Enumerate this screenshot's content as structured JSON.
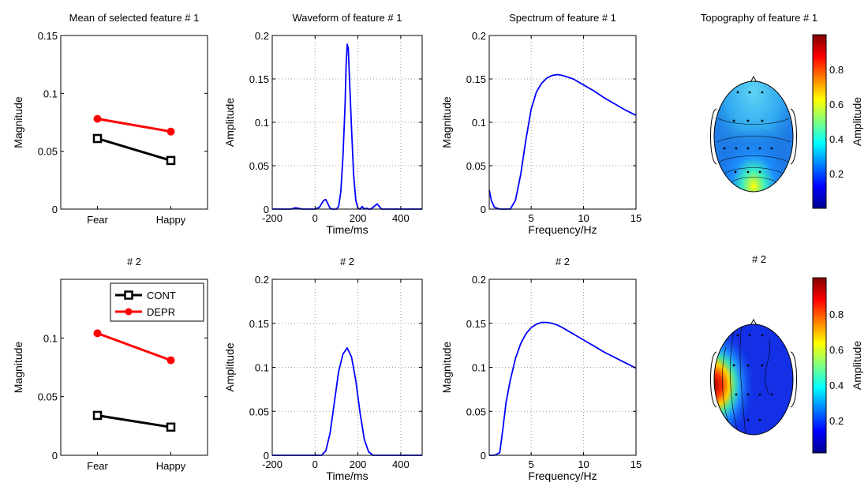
{
  "chart_data": [
    {
      "id": "mean1",
      "type": "line",
      "title": "Mean of selected feature # 1",
      "ylabel": "Magnitude",
      "categories": [
        "Fear",
        "Happy"
      ],
      "series": [
        {
          "name": "CONT",
          "color": "#000000",
          "marker": "square",
          "values": [
            0.061,
            0.042
          ]
        },
        {
          "name": "DEPR",
          "color": "#ff0000",
          "marker": "circle",
          "values": [
            0.078,
            0.067
          ]
        }
      ],
      "ylim": [
        0,
        0.15
      ],
      "yticks": [
        "0",
        "0.05",
        "0.1",
        "0.15"
      ],
      "grid": false,
      "legend": "none"
    },
    {
      "id": "wave1",
      "type": "line",
      "title": "Waveform of feature # 1",
      "xlabel": "Time/ms",
      "ylabel": "Amplitude",
      "series": [
        {
          "color": "#0000ff",
          "x": [
            -200,
            -110,
            -100,
            -90,
            -80,
            -60,
            -40,
            0,
            20,
            30,
            40,
            50,
            60,
            70,
            80,
            90,
            100,
            110,
            120,
            130,
            140,
            145,
            150,
            155,
            160,
            170,
            180,
            190,
            200,
            210,
            220,
            230,
            240,
            250,
            260,
            280,
            290,
            300,
            310,
            320,
            340,
            400,
            500
          ],
          "y": [
            0,
            0,
            0.001,
            0.0015,
            0.001,
            0,
            0,
            0,
            0.002,
            0.006,
            0.01,
            0.011,
            0.006,
            0.001,
            0,
            0,
            0,
            0.003,
            0.02,
            0.06,
            0.12,
            0.165,
            0.19,
            0.185,
            0.155,
            0.095,
            0.04,
            0.01,
            0.001,
            0,
            0.003,
            0,
            0.001,
            0,
            0,
            0.004,
            0.006,
            0.003,
            0,
            0,
            0,
            0,
            0
          ]
        }
      ],
      "xlim": [
        -200,
        500
      ],
      "ylim": [
        0,
        0.2
      ],
      "xticks": [
        "-200",
        "0",
        "200",
        "400"
      ],
      "yticks": [
        "0",
        "0.05",
        "0.1",
        "0.15",
        "0.2"
      ],
      "grid": true
    },
    {
      "id": "spec1",
      "type": "line",
      "title": "Spectrum of feature # 1",
      "xlabel": "Frequency/Hz",
      "ylabel": "Magnitude",
      "series": [
        {
          "color": "#0000ff",
          "x": [
            1,
            1.2,
            1.5,
            2,
            2.5,
            3,
            3.5,
            4,
            4.5,
            5,
            5.5,
            6,
            6.5,
            7,
            7.5,
            8,
            8.5,
            9,
            10,
            11,
            12,
            13,
            14,
            15
          ],
          "y": [
            0.022,
            0.01,
            0.002,
            0,
            0,
            0,
            0.01,
            0.04,
            0.08,
            0.115,
            0.135,
            0.145,
            0.151,
            0.154,
            0.155,
            0.154,
            0.152,
            0.15,
            0.143,
            0.136,
            0.128,
            0.121,
            0.114,
            0.108
          ]
        }
      ],
      "xlim": [
        1,
        15
      ],
      "ylim": [
        0,
        0.2
      ],
      "xticks": [
        "5",
        "10",
        "15"
      ],
      "yticks": [
        "0",
        "0.05",
        "0.1",
        "0.15",
        "0.2"
      ],
      "grid": true
    },
    {
      "id": "topo1",
      "type": "heatmap",
      "title": "Topography of feature # 1",
      "colorbar": {
        "label": "Amplitude",
        "ticks": [
          "0.2",
          "0.4",
          "0.6",
          "0.8"
        ],
        "range": [
          0,
          1
        ]
      }
    },
    {
      "id": "mean2",
      "type": "line",
      "title": "# 2",
      "ylabel": "Magnitude",
      "categories": [
        "Fear",
        "Happy"
      ],
      "series": [
        {
          "name": "CONT",
          "color": "#000000",
          "marker": "square",
          "values": [
            0.034,
            0.024
          ]
        },
        {
          "name": "DEPR",
          "color": "#ff0000",
          "marker": "circle",
          "values": [
            0.104,
            0.081
          ]
        }
      ],
      "ylim": [
        0,
        0.15
      ],
      "yticks": [
        "0",
        "0.05",
        "0.1"
      ],
      "grid": false,
      "legend": "top-right"
    },
    {
      "id": "wave2",
      "type": "line",
      "title": "# 2",
      "xlabel": "Time/ms",
      "ylabel": "Amplitude",
      "series": [
        {
          "color": "#0000ff",
          "x": [
            -200,
            0,
            30,
            50,
            70,
            90,
            110,
            130,
            150,
            170,
            190,
            210,
            230,
            250,
            270,
            500
          ],
          "y": [
            0,
            0,
            0,
            0.005,
            0.025,
            0.06,
            0.095,
            0.115,
            0.122,
            0.112,
            0.085,
            0.048,
            0.018,
            0.004,
            0,
            0
          ]
        }
      ],
      "xlim": [
        -200,
        500
      ],
      "ylim": [
        0,
        0.2
      ],
      "xticks": [
        "-200",
        "0",
        "200",
        "400"
      ],
      "yticks": [
        "0",
        "0.05",
        "0.1",
        "0.15",
        "0.2"
      ],
      "grid": true
    },
    {
      "id": "spec2",
      "type": "line",
      "title": "# 2",
      "xlabel": "Frequency/Hz",
      "ylabel": "Magnitude",
      "series": [
        {
          "color": "#0000ff",
          "x": [
            1,
            1.5,
            2,
            2.3,
            2.6,
            3,
            3.5,
            4,
            4.5,
            5,
            5.5,
            6,
            6.5,
            7,
            7.5,
            8,
            9,
            10,
            11,
            12,
            13,
            14,
            15
          ],
          "y": [
            0,
            0,
            0.003,
            0.03,
            0.06,
            0.085,
            0.11,
            0.127,
            0.138,
            0.145,
            0.149,
            0.151,
            0.151,
            0.15,
            0.148,
            0.145,
            0.138,
            0.131,
            0.124,
            0.117,
            0.111,
            0.105,
            0.099
          ]
        }
      ],
      "xlim": [
        1,
        15
      ],
      "ylim": [
        0,
        0.2
      ],
      "xticks": [
        "5",
        "10",
        "15"
      ],
      "yticks": [
        "0",
        "0.05",
        "0.1",
        "0.15",
        "0.2"
      ],
      "grid": true
    },
    {
      "id": "topo2",
      "type": "heatmap",
      "title": "# 2",
      "colorbar": {
        "label": "Amplitude",
        "ticks": [
          "0.2",
          "0.4",
          "0.6",
          "0.8"
        ],
        "range": [
          0,
          1
        ]
      }
    }
  ]
}
